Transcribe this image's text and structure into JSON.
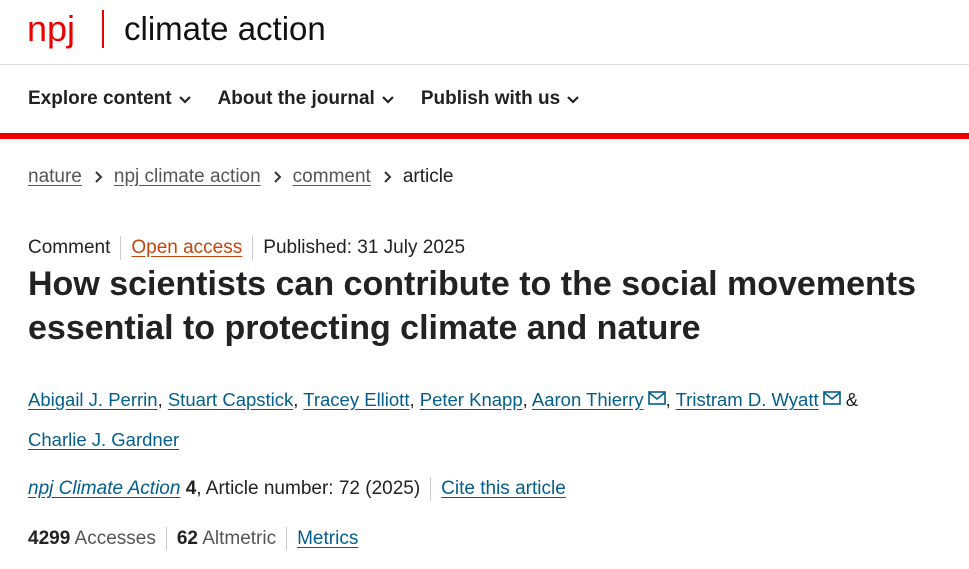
{
  "header": {
    "brand": "npj",
    "journal": "climate action"
  },
  "nav": [
    "Explore content",
    "About the journal",
    "Publish with us"
  ],
  "breadcrumbs": [
    "nature",
    "npj climate action",
    "comment",
    "article"
  ],
  "meta": {
    "type": "Comment",
    "access": "Open access",
    "published": "Published: 31 July 2025"
  },
  "title": "How scientists can contribute to the social movements essential to protecting climate and nature",
  "authors": {
    "separator": ",",
    "conjunction": "&",
    "list": [
      {
        "name": "Abigail J. Perrin",
        "email": false
      },
      {
        "name": "Stuart Capstick",
        "email": false
      },
      {
        "name": "Tracey Elliott",
        "email": false
      },
      {
        "name": "Peter Knapp",
        "email": false
      },
      {
        "name": "Aaron Thierry",
        "email": true
      },
      {
        "name": "Tristram D. Wyatt",
        "email": true
      },
      {
        "name": "Charlie J. Gardner",
        "email": false
      }
    ]
  },
  "citation": {
    "journal": "npj Climate Action",
    "volume": "4",
    "rest": ", Article number: 72 (2025)",
    "cite": "Cite this article"
  },
  "metrics": {
    "accesses": 4299,
    "accesses_label": "Accesses",
    "altmetric": 62,
    "altmetric_label": "Altmetric",
    "link": "Metrics"
  }
}
